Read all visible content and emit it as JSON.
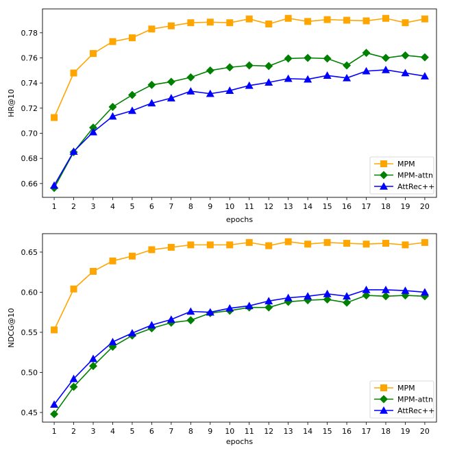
{
  "chart_data": [
    {
      "type": "line",
      "xlabel": "epochs",
      "ylabel": "HR@10",
      "x": [
        1,
        2,
        3,
        4,
        5,
        6,
        7,
        8,
        9,
        10,
        11,
        12,
        13,
        14,
        15,
        16,
        17,
        18,
        19,
        20
      ],
      "xlim": [
        0.4,
        20.6
      ],
      "ylim": [
        0.649,
        0.799
      ],
      "yticks": [
        0.66,
        0.68,
        0.7,
        0.72,
        0.74,
        0.76,
        0.78
      ],
      "ytick_labels": [
        "0.66",
        "0.68",
        "0.70",
        "0.72",
        "0.74",
        "0.76",
        "0.78"
      ],
      "legend_position": "lower-right",
      "grid": false,
      "series": [
        {
          "name": "MPM",
          "color": "#FFA500",
          "marker": "square",
          "values": [
            0.7125,
            0.748,
            0.7635,
            0.773,
            0.776,
            0.783,
            0.7855,
            0.788,
            0.7885,
            0.788,
            0.791,
            0.787,
            0.7915,
            0.789,
            0.7905,
            0.79,
            0.7895,
            0.7915,
            0.788,
            0.791
          ]
        },
        {
          "name": "MPM-attn",
          "color": "#008000",
          "marker": "diamond",
          "values": [
            0.6565,
            0.685,
            0.7045,
            0.721,
            0.7305,
            0.7385,
            0.741,
            0.7445,
            0.75,
            0.7525,
            0.754,
            0.7535,
            0.7595,
            0.76,
            0.7595,
            0.754,
            0.764,
            0.76,
            0.762,
            0.7605
          ]
        },
        {
          "name": "AttRec++",
          "color": "#0000FF",
          "marker": "triangle",
          "values": [
            0.6585,
            0.6855,
            0.701,
            0.7135,
            0.718,
            0.724,
            0.728,
            0.7335,
            0.7315,
            0.734,
            0.738,
            0.7405,
            0.7435,
            0.743,
            0.746,
            0.744,
            0.7495,
            0.7505,
            0.748,
            0.7455
          ]
        }
      ]
    },
    {
      "type": "line",
      "xlabel": "epochs",
      "ylabel": "NDCG@10",
      "x": [
        1,
        2,
        3,
        4,
        5,
        6,
        7,
        8,
        9,
        10,
        11,
        12,
        13,
        14,
        15,
        16,
        17,
        18,
        19,
        20
      ],
      "xlim": [
        0.4,
        20.6
      ],
      "ylim": [
        0.438,
        0.673
      ],
      "yticks": [
        0.45,
        0.5,
        0.55,
        0.6,
        0.65
      ],
      "ytick_labels": [
        "0.45",
        "0.50",
        "0.55",
        "0.60",
        "0.65"
      ],
      "legend_position": "lower-right",
      "grid": false,
      "series": [
        {
          "name": "MPM",
          "color": "#FFA500",
          "marker": "square",
          "values": [
            0.553,
            0.604,
            0.626,
            0.639,
            0.645,
            0.653,
            0.656,
            0.659,
            0.659,
            0.659,
            0.662,
            0.658,
            0.663,
            0.66,
            0.662,
            0.661,
            0.66,
            0.661,
            0.659,
            0.662
          ]
        },
        {
          "name": "MPM-attn",
          "color": "#008000",
          "marker": "diamond",
          "values": [
            0.448,
            0.482,
            0.508,
            0.532,
            0.546,
            0.555,
            0.562,
            0.565,
            0.574,
            0.577,
            0.581,
            0.581,
            0.588,
            0.59,
            0.591,
            0.587,
            0.596,
            0.595,
            0.596,
            0.595
          ]
        },
        {
          "name": "AttRec++",
          "color": "#0000FF",
          "marker": "triangle",
          "values": [
            0.46,
            0.492,
            0.517,
            0.538,
            0.549,
            0.559,
            0.566,
            0.576,
            0.575,
            0.58,
            0.583,
            0.589,
            0.593,
            0.595,
            0.598,
            0.595,
            0.603,
            0.603,
            0.602,
            0.6
          ]
        }
      ]
    }
  ]
}
